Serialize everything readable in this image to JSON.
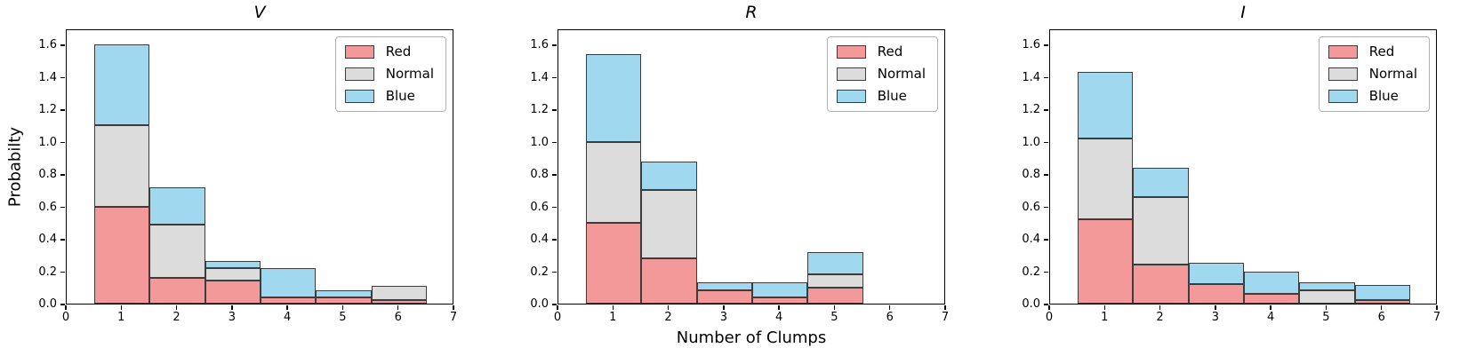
{
  "figure": {
    "xlabel": "Number of Clumps",
    "ylabel": "Probabilty",
    "xlim": [
      0,
      7
    ],
    "ylim": [
      0,
      1.7
    ],
    "x_ticks": [
      0,
      1,
      2,
      3,
      4,
      5,
      6,
      7
    ],
    "y_ticks": [
      "0.0",
      "0.2",
      "0.4",
      "0.6",
      "0.8",
      "1.0",
      "1.2",
      "1.4",
      "1.6"
    ],
    "grid": false,
    "legend_position": "upper right",
    "legend": [
      {
        "label": "Red",
        "key": "red"
      },
      {
        "label": "Normal",
        "key": "normal"
      },
      {
        "label": "Blue",
        "key": "blue"
      }
    ],
    "colors": {
      "red": "#F39999",
      "normal": "#DCDCDC",
      "blue": "#9FD8EF",
      "edge": "#3c3c3c",
      "spine": "#000000"
    }
  },
  "chart_data": [
    {
      "type": "bar",
      "stacked": true,
      "title": "V",
      "bin_centers": [
        1,
        2,
        3,
        4,
        5,
        6
      ],
      "bin_width": 1,
      "series": [
        {
          "name": "Red",
          "values": [
            0.6,
            0.16,
            0.14,
            0.04,
            0.04,
            0.02
          ]
        },
        {
          "name": "Normal",
          "values": [
            0.5,
            0.33,
            0.08,
            0.0,
            0.0,
            0.09
          ]
        },
        {
          "name": "Blue",
          "values": [
            0.5,
            0.23,
            0.045,
            0.18,
            0.045,
            0.0
          ]
        }
      ]
    },
    {
      "type": "bar",
      "stacked": true,
      "title": "R",
      "bin_centers": [
        1,
        2,
        3,
        4,
        5,
        6
      ],
      "bin_width": 1,
      "series": [
        {
          "name": "Red",
          "values": [
            0.5,
            0.28,
            0.08,
            0.04,
            0.1,
            0.0
          ]
        },
        {
          "name": "Normal",
          "values": [
            0.5,
            0.42,
            0.0,
            0.0,
            0.08,
            0.0
          ]
        },
        {
          "name": "Blue",
          "values": [
            0.54,
            0.18,
            0.05,
            0.09,
            0.14,
            0.0
          ]
        }
      ]
    },
    {
      "type": "bar",
      "stacked": true,
      "title": "I",
      "bin_centers": [
        1,
        2,
        3,
        4,
        5,
        6
      ],
      "bin_width": 1,
      "series": [
        {
          "name": "Red",
          "values": [
            0.52,
            0.24,
            0.12,
            0.06,
            0.0,
            0.02
          ]
        },
        {
          "name": "Normal",
          "values": [
            0.5,
            0.42,
            0.0,
            0.0,
            0.085,
            0.0
          ]
        },
        {
          "name": "Blue",
          "values": [
            0.41,
            0.18,
            0.135,
            0.135,
            0.045,
            0.095
          ]
        }
      ]
    }
  ]
}
